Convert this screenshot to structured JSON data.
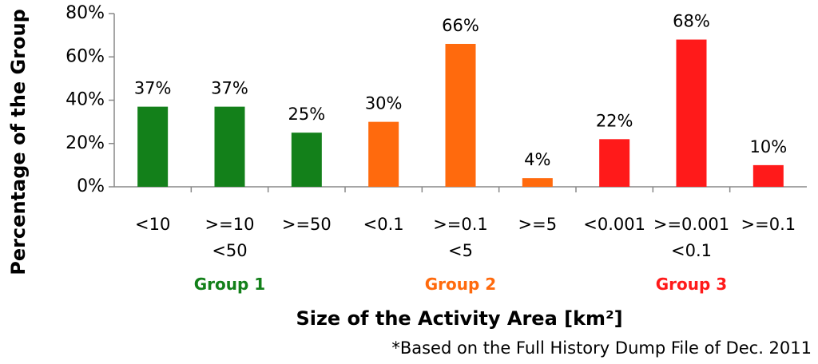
{
  "chart_data": {
    "type": "bar",
    "y_label": "Percentage of the Group",
    "x_label": "Size of the Activity Area [km²]",
    "footnote": "*Based on the Full History Dump File of Dec. 2011",
    "ylim": [
      0,
      80
    ],
    "yticks": [
      {
        "value": 0,
        "label": "0%"
      },
      {
        "value": 20,
        "label": "20%"
      },
      {
        "value": 40,
        "label": "40%"
      },
      {
        "value": 60,
        "label": "60%"
      },
      {
        "value": 80,
        "label": "80%"
      }
    ],
    "grid": false,
    "series": [
      {
        "name": "Group 1",
        "color": "#13801a",
        "categories": [
          "<10",
          ">=10\n<50",
          ">=50"
        ],
        "values": [
          37,
          37,
          25
        ],
        "value_labels": [
          "37%",
          "37%",
          "25%"
        ]
      },
      {
        "name": "Group 2",
        "color": "#ff6a0d",
        "categories": [
          "<0.1",
          ">=0.1\n<5",
          ">=5"
        ],
        "values": [
          30,
          66,
          4
        ],
        "value_labels": [
          "30%",
          "66%",
          "4%"
        ]
      },
      {
        "name": "Group 3",
        "color": "#ff1a1a",
        "categories": [
          "<0.001",
          ">=0.001\n<0.1",
          ">=0.1"
        ],
        "values": [
          22,
          68,
          10
        ],
        "value_labels": [
          "22%",
          "68%",
          "10%"
        ]
      }
    ]
  }
}
